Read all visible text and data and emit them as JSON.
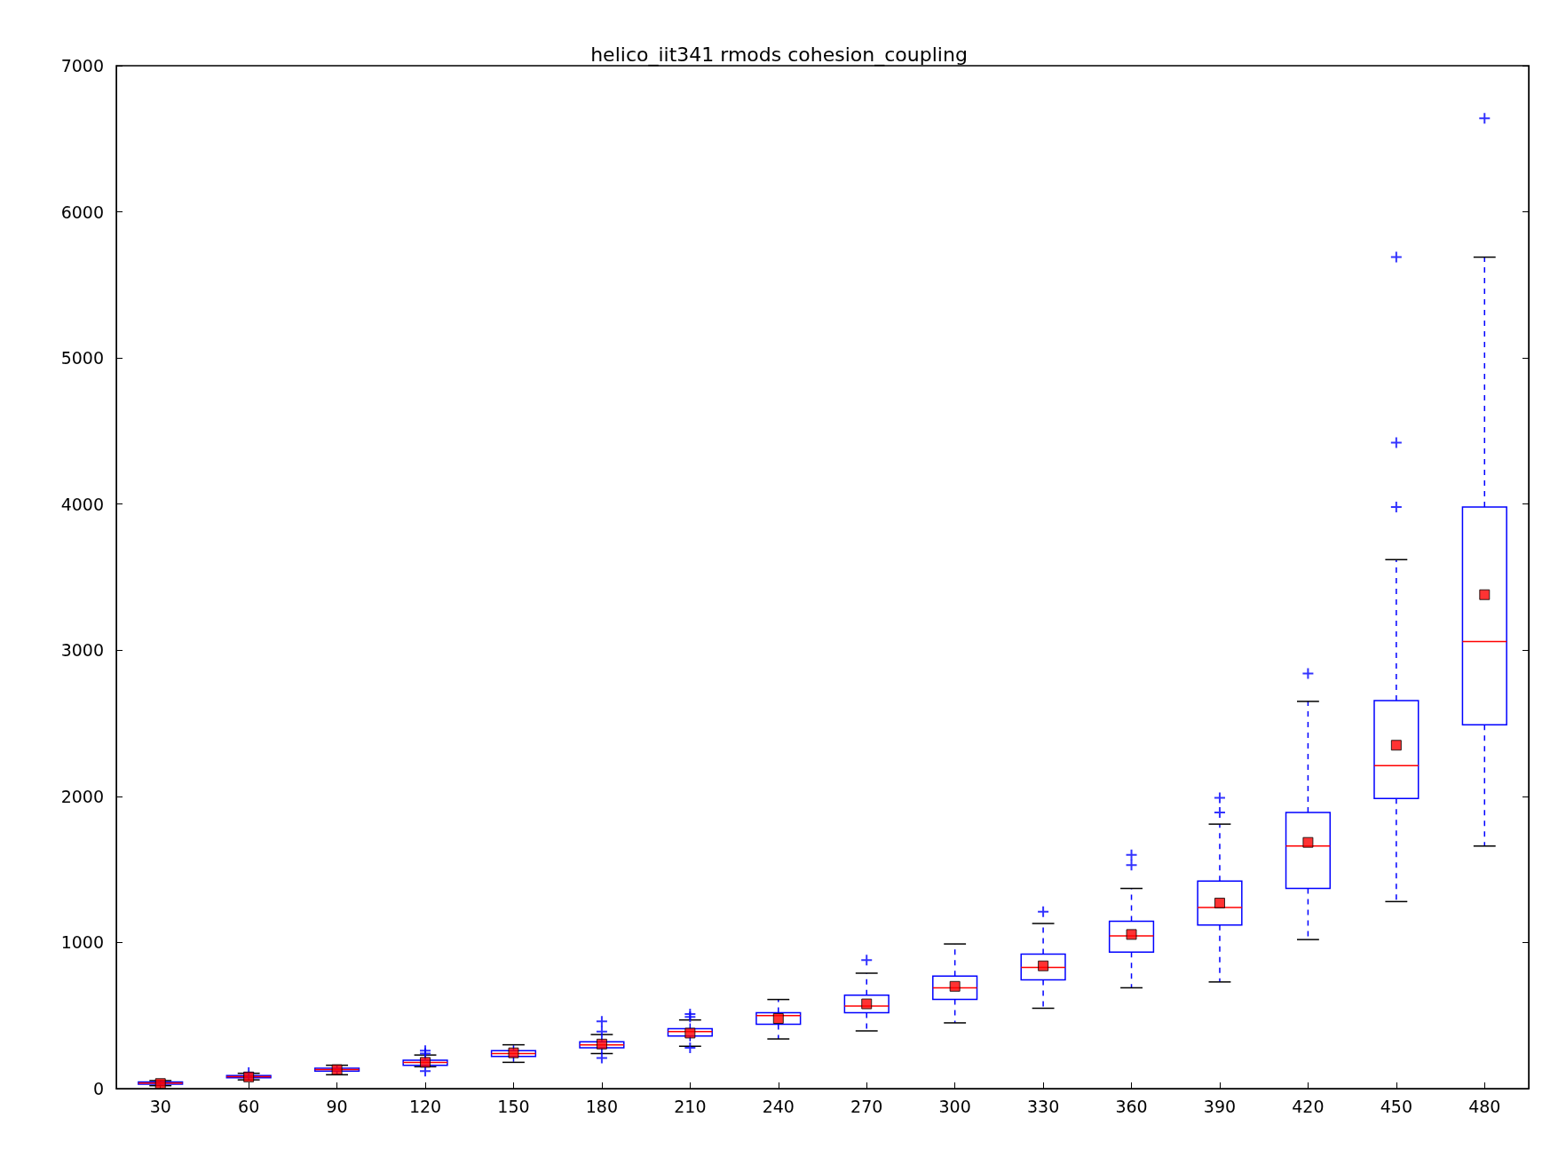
{
  "chart_data": {
    "type": "box",
    "title": "helico_iit341 rmods cohesion_coupling",
    "categories": [
      "30",
      "60",
      "90",
      "120",
      "150",
      "180",
      "210",
      "240",
      "270",
      "300",
      "330",
      "360",
      "390",
      "420",
      "450",
      "480"
    ],
    "color": "#0000ff",
    "marker": "square",
    "ylim": [
      0,
      7000
    ],
    "yticks": [
      0,
      1000,
      2000,
      3000,
      4000,
      5000,
      6000,
      7000
    ],
    "grid": false,
    "legend": false,
    "boxes": [
      {
        "low": 20,
        "q1": 30,
        "median": 38,
        "q3": 45,
        "high": 55,
        "mean": 35
      },
      {
        "low": 60,
        "q1": 75,
        "median": 82,
        "q3": 90,
        "high": 105,
        "mean": 80,
        "outliers": [
          110
        ]
      },
      {
        "low": 95,
        "q1": 120,
        "median": 130,
        "q3": 140,
        "high": 160,
        "mean": 130
      },
      {
        "low": 150,
        "q1": 160,
        "median": 180,
        "q3": 195,
        "high": 230,
        "mean": 180,
        "outliers": [
          120,
          240,
          260
        ]
      },
      {
        "low": 180,
        "q1": 220,
        "median": 240,
        "q3": 260,
        "high": 300,
        "mean": 245
      },
      {
        "low": 240,
        "q1": 280,
        "median": 300,
        "q3": 320,
        "high": 370,
        "mean": 305,
        "outliers": [
          210,
          390,
          460
        ]
      },
      {
        "low": 290,
        "q1": 360,
        "median": 390,
        "q3": 410,
        "high": 470,
        "mean": 380,
        "outliers": [
          280,
          490,
          510
        ]
      },
      {
        "low": 340,
        "q1": 440,
        "median": 500,
        "q3": 520,
        "high": 610,
        "mean": 480
      },
      {
        "low": 395,
        "q1": 520,
        "median": 565,
        "q3": 640,
        "high": 790,
        "mean": 580,
        "outliers": [
          880
        ]
      },
      {
        "low": 450,
        "q1": 610,
        "median": 690,
        "q3": 770,
        "high": 990,
        "mean": 700
      },
      {
        "low": 550,
        "q1": 745,
        "median": 830,
        "q3": 920,
        "high": 1130,
        "mean": 840,
        "outliers": [
          1210
        ]
      },
      {
        "low": 690,
        "q1": 935,
        "median": 1045,
        "q3": 1145,
        "high": 1370,
        "mean": 1055,
        "outliers": [
          1530,
          1600
        ]
      },
      {
        "low": 730,
        "q1": 1120,
        "median": 1240,
        "q3": 1420,
        "high": 1810,
        "mean": 1270,
        "outliers": [
          1890,
          1990
        ]
      },
      {
        "low": 1020,
        "q1": 1370,
        "median": 1660,
        "q3": 1890,
        "high": 2650,
        "mean": 1685,
        "outliers": [
          2840
        ]
      },
      {
        "low": 1280,
        "q1": 1985,
        "median": 2210,
        "q3": 2655,
        "high": 3620,
        "mean": 2350,
        "outliers": [
          3980,
          4420,
          5690
        ]
      },
      {
        "low": 1660,
        "q1": 2490,
        "median": 3060,
        "q3": 3980,
        "high": 5690,
        "mean": 3380,
        "outliers": [
          6640
        ]
      }
    ]
  }
}
